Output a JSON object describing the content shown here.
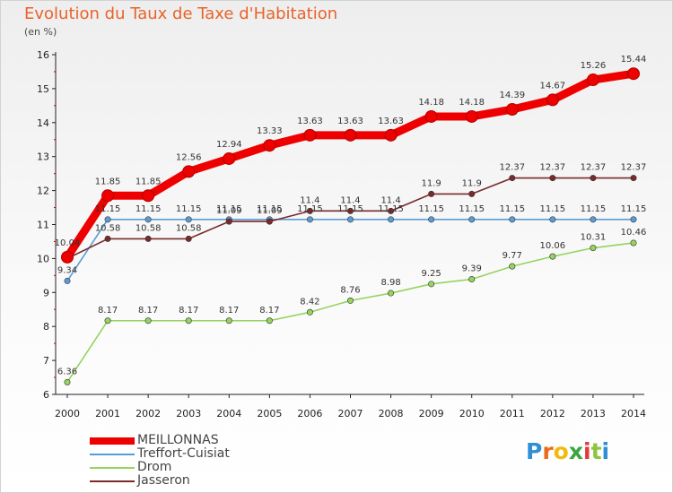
{
  "header": {
    "title": "Evolution du Taux de Taxe d'Habitation",
    "unit": "(en %)"
  },
  "brand": {
    "letters": [
      "P",
      "r",
      "o",
      "x",
      "i",
      "t",
      "i"
    ],
    "colors": [
      "#2e8fd6",
      "#ea6b1d",
      "#f2b90f",
      "#3aa641",
      "#e23b3b",
      "#8bc53f",
      "#2e8fd6"
    ]
  },
  "chart_data": {
    "type": "line",
    "x": [
      "2000",
      "2001",
      "2002",
      "2003",
      "2004",
      "2005",
      "2006",
      "2007",
      "2008",
      "2009",
      "2010",
      "2011",
      "2012",
      "2013",
      "2014"
    ],
    "ylim": [
      6,
      16
    ],
    "yticks": [
      "6",
      "7",
      "8",
      "9",
      "10",
      "11",
      "12",
      "13",
      "14",
      "15",
      "16"
    ],
    "grid": false,
    "legend": "bottom-left",
    "series": [
      {
        "name": "MEILLONNAS",
        "color": "#ee0000",
        "values": [
          10.04,
          11.85,
          11.85,
          12.56,
          12.94,
          13.33,
          13.63,
          13.63,
          13.63,
          14.18,
          14.18,
          14.39,
          14.67,
          15.26,
          15.44
        ],
        "labels": [
          "10.04",
          "11.85",
          "11.85",
          "12.56",
          "12.94",
          "13.33",
          "13.63",
          "13.63",
          "13.63",
          "14.18",
          "14.18",
          "14.39",
          "14.67",
          "15.26",
          "15.44"
        ]
      },
      {
        "name": "Treffort-Cuisiat",
        "color": "#5b9bd5",
        "values": [
          9.34,
          11.15,
          11.15,
          11.15,
          11.15,
          11.15,
          11.15,
          11.15,
          11.15,
          11.15,
          11.15,
          11.15,
          11.15,
          11.15,
          11.15
        ],
        "labels": [
          "9.34",
          "11.15",
          "11.15",
          "11.15",
          "11.15",
          "11.15",
          "11.15",
          "11.15",
          "11.15",
          "11.15",
          "11.15",
          "11.15",
          "11.15",
          "11.15",
          "11.15"
        ]
      },
      {
        "name": "Drom",
        "color": "#96d35f",
        "values": [
          6.36,
          8.17,
          8.17,
          8.17,
          8.17,
          8.17,
          8.42,
          8.76,
          8.98,
          9.25,
          9.39,
          9.77,
          10.06,
          10.31,
          10.46
        ],
        "labels": [
          "6.36",
          "8.17",
          "8.17",
          "8.17",
          "8.17",
          "8.17",
          "8.42",
          "8.76",
          "8.98",
          "9.25",
          "9.39",
          "9.77",
          "10.06",
          "10.31",
          "10.46"
        ]
      },
      {
        "name": "Jasseron",
        "color": "#7a2a2a",
        "values": [
          10.0,
          10.58,
          10.58,
          10.58,
          11.09,
          11.09,
          11.4,
          11.4,
          11.4,
          11.9,
          11.9,
          12.37,
          12.37,
          12.37,
          12.37
        ],
        "labels": [
          "",
          "10.58",
          "10.58",
          "10.58",
          "11.09",
          "11.09",
          "11.4",
          "11.4",
          "11.4",
          "11.9",
          "11.9",
          "12.37",
          "12.37",
          "12.37",
          "12.37"
        ]
      }
    ]
  }
}
